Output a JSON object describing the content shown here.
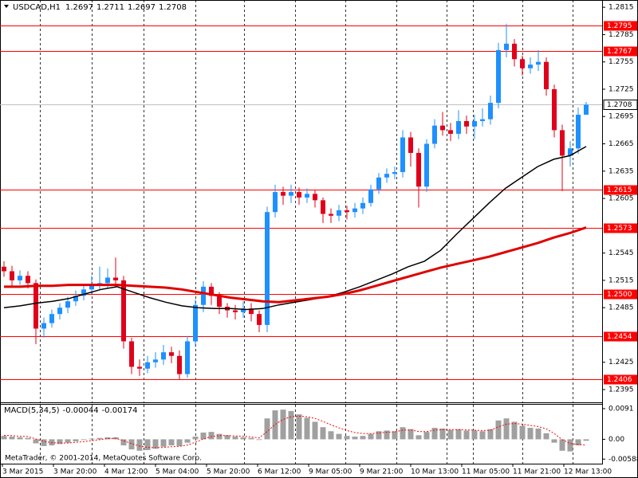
{
  "chart_data": {
    "type": "candlestick",
    "symbol": "USDCAD,H1",
    "header_values": [
      1.2697,
      1.2711,
      1.2697,
      1.2708
    ],
    "open": [
      1.253,
      1.2525,
      1.2515,
      1.252,
      1.2512,
      1.2462,
      1.2468,
      1.2478,
      1.2485,
      1.2492,
      1.2498,
      1.2505,
      1.251,
      1.2512,
      1.2518,
      1.2515,
      1.2448,
      1.242,
      1.2418,
      1.2425,
      1.2428,
      1.2436,
      1.2432,
      1.2412,
      1.2448,
      1.2488,
      1.2508,
      1.2498,
      1.2486,
      1.2482,
      1.248,
      1.2484,
      1.2478,
      1.2466,
      1.259,
      1.2612,
      1.2608,
      1.2612,
      1.2606,
      1.261,
      1.2603,
      1.2588,
      1.2586,
      1.2592,
      1.259,
      1.2594,
      1.26,
      1.2615,
      1.2628,
      1.2632,
      1.2634,
      1.2672,
      1.2655,
      1.2618,
      1.2665,
      1.2685,
      1.268,
      1.2676,
      1.269,
      1.2684,
      1.269,
      1.2692,
      1.271,
      1.2768,
      1.2775,
      1.2758,
      1.2748,
      1.2752,
      1.2755,
      1.2725,
      1.268,
      1.2652,
      1.266,
      1.2697
    ],
    "high": [
      1.2536,
      1.2531,
      1.2526,
      1.2525,
      1.2516,
      1.2474,
      1.2483,
      1.249,
      1.2497,
      1.2504,
      1.2511,
      1.252,
      1.253,
      1.2528,
      1.254,
      1.252,
      1.2452,
      1.2428,
      1.2432,
      1.2436,
      1.2444,
      1.2442,
      1.2438,
      1.2454,
      1.2494,
      1.2514,
      1.2512,
      1.2502,
      1.249,
      1.2488,
      1.2492,
      1.249,
      1.2482,
      1.2596,
      1.262,
      1.2618,
      1.262,
      1.2617,
      1.2616,
      1.2614,
      1.2606,
      1.2594,
      1.2598,
      1.2597,
      1.26,
      1.2606,
      1.262,
      1.2633,
      1.2638,
      1.264,
      1.268,
      1.2678,
      1.266,
      1.267,
      1.2692,
      1.27,
      1.2688,
      1.2702,
      1.2696,
      1.2697,
      1.2704,
      1.2718,
      1.2776,
      1.2797,
      1.278,
      1.2762,
      1.276,
      1.2768,
      1.276,
      1.273,
      1.2686,
      1.2668,
      1.2705,
      1.2711
    ],
    "low": [
      1.2519,
      1.2509,
      1.251,
      1.2506,
      1.2445,
      1.2452,
      1.2463,
      1.2472,
      1.2479,
      1.2487,
      1.2493,
      1.25,
      1.2504,
      1.2506,
      1.2508,
      1.244,
      1.2412,
      1.241,
      1.2413,
      1.2419,
      1.2422,
      1.2424,
      1.2406,
      1.2408,
      1.2442,
      1.248,
      1.2488,
      1.2478,
      1.2474,
      1.2472,
      1.2474,
      1.247,
      1.2458,
      1.2458,
      1.2584,
      1.2598,
      1.26,
      1.2598,
      1.26,
      1.2595,
      1.2578,
      1.2578,
      1.258,
      1.2582,
      1.2584,
      1.2588,
      1.2596,
      1.261,
      1.2622,
      1.2626,
      1.2628,
      1.264,
      1.2595,
      1.2612,
      1.266,
      1.2674,
      1.2668,
      1.267,
      1.2676,
      1.267,
      1.2684,
      1.2686,
      1.2704,
      1.276,
      1.275,
      1.274,
      1.2742,
      1.2745,
      1.2718,
      1.2672,
      1.2613,
      1.264,
      1.2654,
      1.2697
    ],
    "close": [
      1.2525,
      1.2515,
      1.252,
      1.2512,
      1.2462,
      1.2468,
      1.2478,
      1.2485,
      1.2492,
      1.2498,
      1.2505,
      1.251,
      1.2512,
      1.2518,
      1.2515,
      1.2448,
      1.242,
      1.2418,
      1.2425,
      1.2428,
      1.2436,
      1.2432,
      1.2412,
      1.2448,
      1.2488,
      1.2508,
      1.2498,
      1.2486,
      1.2482,
      1.248,
      1.2484,
      1.2478,
      1.2466,
      1.259,
      1.2612,
      1.2608,
      1.2612,
      1.2606,
      1.261,
      1.2603,
      1.2588,
      1.2586,
      1.2592,
      1.259,
      1.2594,
      1.26,
      1.2615,
      1.2628,
      1.2632,
      1.2634,
      1.2672,
      1.2655,
      1.2618,
      1.2665,
      1.2685,
      1.268,
      1.2676,
      1.269,
      1.2684,
      1.269,
      1.2692,
      1.271,
      1.2768,
      1.2775,
      1.2758,
      1.2748,
      1.2752,
      1.2755,
      1.2725,
      1.268,
      1.2652,
      1.266,
      1.2697,
      1.2708
    ],
    "bull_color": "#1e90ff",
    "bear_color": "#e0001b",
    "ylim": [
      1.2381,
      1.2823
    ],
    "yticks": [
      1.2815,
      1.2785,
      1.2755,
      1.2725,
      1.2695,
      1.2665,
      1.2635,
      1.2605,
      1.2545,
      1.2515,
      1.2485,
      1.2425,
      1.2395
    ],
    "moving_averages": [
      {
        "color": "#000000",
        "values": [
          1.2485,
          1.2487,
          1.249,
          1.2492,
          1.2495,
          1.25,
          1.2505,
          1.2508,
          1.2502,
          1.2496,
          1.2491,
          1.2487,
          1.2485,
          1.2484,
          1.2484,
          1.2483,
          1.2484,
          1.2488,
          1.2491,
          1.2494,
          1.2497,
          1.2502,
          1.2508,
          1.2515,
          1.2522,
          1.253,
          1.2536,
          1.2548,
          1.2566,
          1.2583,
          1.26,
          1.2616,
          1.2628,
          1.264,
          1.2648,
          1.2652,
          1.2662
        ]
      },
      {
        "color": "#e00000",
        "values": [
          1.2508,
          1.2508,
          1.2509,
          1.2509,
          1.251,
          1.251,
          1.251,
          1.251,
          1.2509,
          1.2508,
          1.2507,
          1.2505,
          1.2502,
          1.2499,
          1.2496,
          1.2494,
          1.2492,
          1.2491,
          1.2493,
          1.2495,
          1.2497,
          1.25,
          1.2504,
          1.2509,
          1.2514,
          1.2519,
          1.2524,
          1.2529,
          1.2533,
          1.2537,
          1.2541,
          1.2546,
          1.2551,
          1.2556,
          1.2562,
          1.2567,
          1.2573
        ]
      }
    ],
    "levels": [
      {
        "value": 1.2795
      },
      {
        "value": 1.2767
      },
      {
        "value": 1.2615
      },
      {
        "value": 1.2573
      },
      {
        "value": {
          "value": 1.25,
          "label": "1.2500"
        }
      },
      {
        "value": 1.2454
      },
      {
        "value": 1.2406
      }
    ],
    "level_color": "#ff0000",
    "current_price": 1.2708,
    "categories": [
      "3 Mar 2015",
      "3 Mar 20:00",
      "4 Mar 12:00",
      "5 Mar 04:00",
      "5 Mar 20:00",
      "6 Mar 12:00",
      "9 Mar 05:00",
      "9 Mar 21:00",
      "10 Mar 13:00",
      "11 Mar 05:00",
      "11 Mar 21:00",
      "12 Mar 13:00"
    ],
    "macd": {
      "type": "bar",
      "label": "MACD(5,34,5)",
      "main_value": -0.00044,
      "signal_value": -0.00174,
      "color": "#a0a0a0",
      "signal_color": "#ff0000",
      "values": [
        0.001,
        0.0008,
        0.0006,
        0.0004,
        -0.0012,
        -0.002,
        -0.0018,
        -0.0014,
        -0.001,
        -0.0006,
        -0.0002,
        0.0002,
        0.0004,
        0.0006,
        0.0006,
        -0.0018,
        -0.003,
        -0.0034,
        -0.0032,
        -0.0028,
        -0.0022,
        -0.0018,
        -0.002,
        -0.001,
        0.0008,
        0.002,
        0.0022,
        0.0016,
        0.0012,
        0.0008,
        0.0006,
        0.0004,
        -0.0002,
        0.0062,
        0.0086,
        0.0088,
        0.0084,
        0.0074,
        0.0064,
        0.0052,
        0.0036,
        0.0024,
        0.0016,
        0.001,
        0.0008,
        0.001,
        0.0016,
        0.0024,
        0.0026,
        0.0024,
        0.0036,
        0.003,
        0.0012,
        0.0022,
        0.0034,
        0.0032,
        0.0028,
        0.003,
        0.0026,
        0.0026,
        0.0024,
        0.003,
        0.0056,
        0.0062,
        0.0052,
        0.004,
        0.0034,
        0.0032,
        0.0018,
        -0.001,
        -0.0034,
        -0.0036,
        -0.0018,
        -0.00044
      ],
      "signal": [
        0.0012,
        0.0011,
        0.0009,
        0.0008,
        0.0001,
        -0.0006,
        -0.001,
        -0.0011,
        -0.0011,
        -0.0009,
        -0.0007,
        -0.0004,
        -0.0001,
        0.0002,
        0.0003,
        -0.0004,
        -0.0013,
        -0.002,
        -0.0024,
        -0.0025,
        -0.0024,
        -0.0022,
        -0.0021,
        -0.0017,
        -0.0009,
        0.0001,
        0.0008,
        0.0011,
        0.0011,
        0.001,
        0.0009,
        0.0007,
        0.0004,
        0.0023,
        0.0044,
        0.0059,
        0.0067,
        0.0069,
        0.0067,
        0.0062,
        0.0053,
        0.0043,
        0.0034,
        0.0026,
        0.002,
        0.0017,
        0.0017,
        0.0019,
        0.0021,
        0.0022,
        0.0027,
        0.0028,
        0.0023,
        0.0023,
        0.0027,
        0.0029,
        0.0029,
        0.0029,
        0.0028,
        0.0027,
        0.0026,
        0.0027,
        0.0037,
        0.0045,
        0.0047,
        0.0045,
        0.0041,
        0.0038,
        0.0031,
        0.0017,
        -0.0001,
        -0.0013,
        -0.0015,
        -0.00174
      ],
      "ylim": [
        -0.00723,
        0.01027
      ],
      "yticks": [
        0.0091,
        {
          "value": 0,
          "label": "0.00"
        },
        -0.00588
      ]
    },
    "watermark": "MetaTrader, © 2001-2014, MetaQuotes Software Corp."
  }
}
